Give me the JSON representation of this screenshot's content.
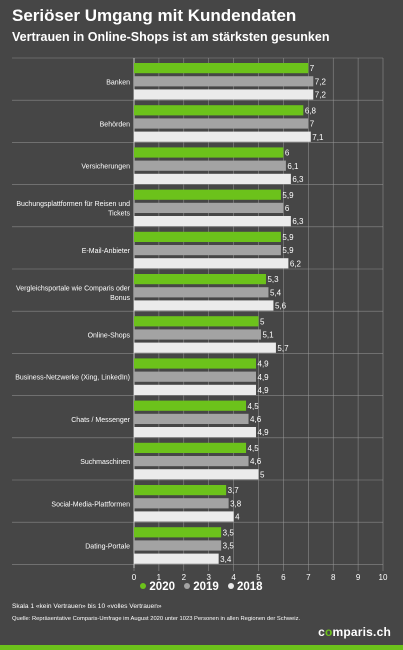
{
  "header": {
    "title": "Seriöser Umgang mit Kundendaten",
    "subtitle": "Vertrauen in Online-Shops ist am stärksten gesunken"
  },
  "colors": {
    "background": "#464646",
    "series_2020": "#6cc21b",
    "series_2019": "#a3a3a3",
    "series_2018": "#ebebeb",
    "grid": "#9a9a9a",
    "separator": "#8a8a8a",
    "accent": "#6cc21b"
  },
  "chart_data": {
    "type": "bar",
    "orientation": "horizontal",
    "categories": [
      "Banken",
      "Behörden",
      "Versicherungen",
      "Buchungsplattformen für Reisen und Tickets",
      "E-Mail-Anbieter",
      "Vergleichsportale wie Comparis oder Bonus",
      "Online-Shops",
      "Business-Netzwerke (Xing, LinkedIn)",
      "Chats / Messenger",
      "Suchmaschinen",
      "Social-Media-Plattformen",
      "Dating-Portale"
    ],
    "category_lines": [
      [
        "Banken"
      ],
      [
        "Behörden"
      ],
      [
        "Versicherungen"
      ],
      [
        "Buchungsplattformen für Reisen und",
        "Tickets"
      ],
      [
        "E-Mail-Anbieter"
      ],
      [
        "Vergleichsportale wie Comparis oder",
        "Bonus"
      ],
      [
        "Online-Shops"
      ],
      [
        "Business-Netzwerke (Xing, LinkedIn)"
      ],
      [
        "Chats / Messenger"
      ],
      [
        "Suchmaschinen"
      ],
      [
        "Social-Media-Plattformen"
      ],
      [
        "Dating-Portale"
      ]
    ],
    "series": [
      {
        "name": "2020",
        "color": "#6cc21b",
        "values": [
          7,
          6.8,
          6,
          5.9,
          5.9,
          5.3,
          5,
          4.9,
          4.5,
          4.5,
          3.7,
          3.5
        ]
      },
      {
        "name": "2019",
        "color": "#a3a3a3",
        "values": [
          7.2,
          7,
          6.1,
          6,
          5.9,
          5.4,
          5.1,
          4.9,
          4.6,
          4.6,
          3.8,
          3.5
        ]
      },
      {
        "name": "2018",
        "color": "#ebebeb",
        "values": [
          7.2,
          7.1,
          6.3,
          6.3,
          6.2,
          5.6,
          5.7,
          4.9,
          4.9,
          5,
          4,
          3.4
        ]
      }
    ],
    "xlim": [
      0,
      10
    ],
    "x_ticks": [
      "0",
      "1",
      "2",
      "3",
      "4",
      "5",
      "6",
      "7",
      "8",
      "9",
      "10"
    ],
    "value_labels": [
      [
        "7",
        "6,8",
        "6",
        "5,9",
        "5,9",
        "5,3",
        "5",
        "4,9",
        "4,5",
        "4,5",
        "3,7",
        "3,5"
      ],
      [
        "7,2",
        "7",
        "6,1",
        "6",
        "5,9",
        "5,4",
        "5,1",
        "4,9",
        "4,6",
        "4,6",
        "3,8",
        "3,5"
      ],
      [
        "7,2",
        "7,1",
        "6,3",
        "6,3",
        "6,2",
        "5,6",
        "5,7",
        "4,9",
        "4,9",
        "5",
        "4",
        "3,4"
      ]
    ],
    "grid": true,
    "legend_position": "bottom-center"
  },
  "legend": {
    "items": [
      {
        "label": "2020",
        "color": "#6cc21b"
      },
      {
        "label": "2019",
        "color": "#a3a3a3"
      },
      {
        "label": "2018",
        "color": "#ebebeb"
      }
    ]
  },
  "footer": {
    "note": "Skala 1 «kein Vertrauen» bis 10 «volles Vertrauen»",
    "source": "Quelle: Repräsentative Comparis-Umfrage im August 2020 unter 1023 Personen in allen Regionen der Schweiz.",
    "logo_prefix": "c",
    "logo_dot": "o",
    "logo_suffix": "mparis.ch"
  }
}
